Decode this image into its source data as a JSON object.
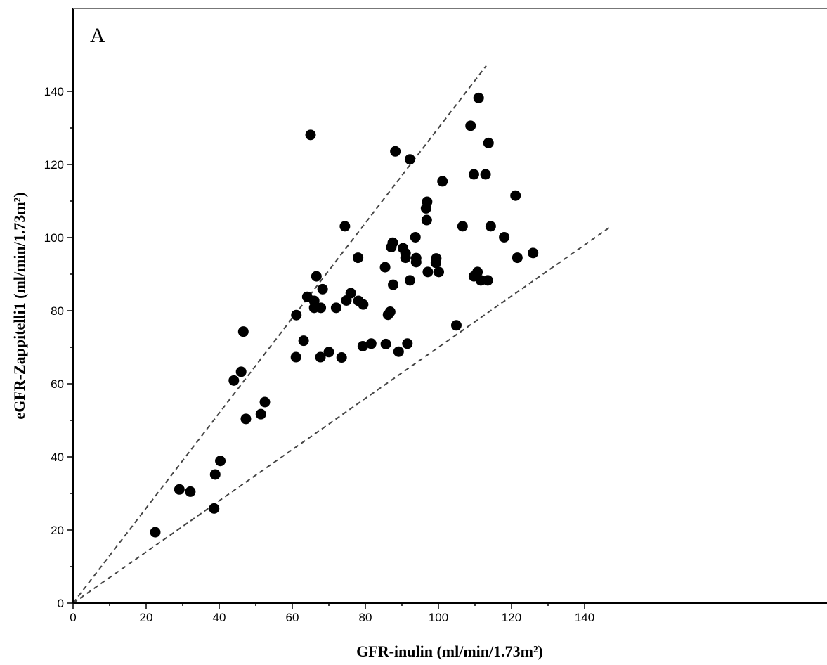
{
  "chart_data": {
    "type": "scatter",
    "panel_label": "A",
    "xlabel": "GFR-inulin (ml/min/1.73m²)",
    "ylabel": "eGFR-Zappitelli1 (ml/min/1.73m²)",
    "xlim": [
      0,
      147
    ],
    "ylim": [
      0,
      147
    ],
    "x_ticks": [
      0,
      20,
      40,
      60,
      80,
      100,
      120,
      140
    ],
    "y_ticks": [
      0,
      20,
      40,
      60,
      80,
      100,
      120,
      140
    ],
    "x_minor_step": 10,
    "y_minor_step": 10,
    "grid": false,
    "marker_color": "#000000",
    "reference_lines": [
      {
        "slope": 1.3,
        "intercept": 0,
        "style": "dashed"
      },
      {
        "slope": 0.7,
        "intercept": 0,
        "style": "dashed"
      }
    ],
    "points": [
      [
        22.5,
        19.4
      ],
      [
        29.1,
        31.1
      ],
      [
        32.1,
        30.5
      ],
      [
        38.6,
        25.9
      ],
      [
        38.9,
        35.2
      ],
      [
        40.3,
        38.9
      ],
      [
        44.0,
        60.9
      ],
      [
        46.0,
        63.3
      ],
      [
        46.6,
        74.3
      ],
      [
        47.3,
        50.4
      ],
      [
        51.4,
        51.7
      ],
      [
        52.5,
        55.0
      ],
      [
        61.0,
        67.3
      ],
      [
        61.1,
        78.8
      ],
      [
        63.1,
        71.8
      ],
      [
        64.1,
        83.8
      ],
      [
        65.0,
        128.1
      ],
      [
        66.0,
        82.7
      ],
      [
        66.0,
        80.8
      ],
      [
        66.6,
        89.4
      ],
      [
        67.7,
        67.3
      ],
      [
        67.8,
        80.8
      ],
      [
        68.3,
        85.9
      ],
      [
        70.0,
        68.7
      ],
      [
        72.0,
        80.8
      ],
      [
        73.5,
        67.2
      ],
      [
        74.4,
        103.1
      ],
      [
        74.8,
        82.8
      ],
      [
        76.0,
        84.8
      ],
      [
        78.0,
        94.5
      ],
      [
        78.1,
        82.7
      ],
      [
        79.4,
        81.7
      ],
      [
        79.3,
        70.3
      ],
      [
        81.6,
        71.0
      ],
      [
        85.4,
        91.9
      ],
      [
        85.6,
        70.9
      ],
      [
        86.2,
        78.9
      ],
      [
        86.8,
        79.7
      ],
      [
        87.1,
        97.4
      ],
      [
        87.5,
        98.6
      ],
      [
        87.6,
        87.1
      ],
      [
        88.2,
        123.6
      ],
      [
        89.1,
        68.8
      ],
      [
        90.3,
        97.1
      ],
      [
        91.0,
        95.7
      ],
      [
        91.0,
        94.5
      ],
      [
        91.5,
        71.0
      ],
      [
        92.2,
        121.4
      ],
      [
        92.2,
        88.3
      ],
      [
        93.7,
        100.1
      ],
      [
        93.9,
        94.4
      ],
      [
        93.9,
        93.3
      ],
      [
        96.6,
        108.0
      ],
      [
        96.8,
        104.8
      ],
      [
        96.9,
        109.8
      ],
      [
        97.1,
        90.6
      ],
      [
        99.4,
        94.3
      ],
      [
        99.3,
        93.1
      ],
      [
        100.1,
        90.6
      ],
      [
        101.1,
        115.4
      ],
      [
        104.9,
        76.0
      ],
      [
        106.6,
        103.1
      ],
      [
        108.8,
        130.6
      ],
      [
        109.7,
        117.3
      ],
      [
        109.7,
        89.4
      ],
      [
        110.7,
        90.6
      ],
      [
        111.0,
        138.2
      ],
      [
        111.6,
        88.3
      ],
      [
        112.9,
        117.3
      ],
      [
        113.5,
        88.3
      ],
      [
        113.7,
        125.9
      ],
      [
        114.3,
        103.1
      ],
      [
        118.0,
        100.1
      ],
      [
        121.1,
        111.5
      ],
      [
        121.6,
        94.5
      ],
      [
        125.9,
        95.8
      ]
    ]
  }
}
